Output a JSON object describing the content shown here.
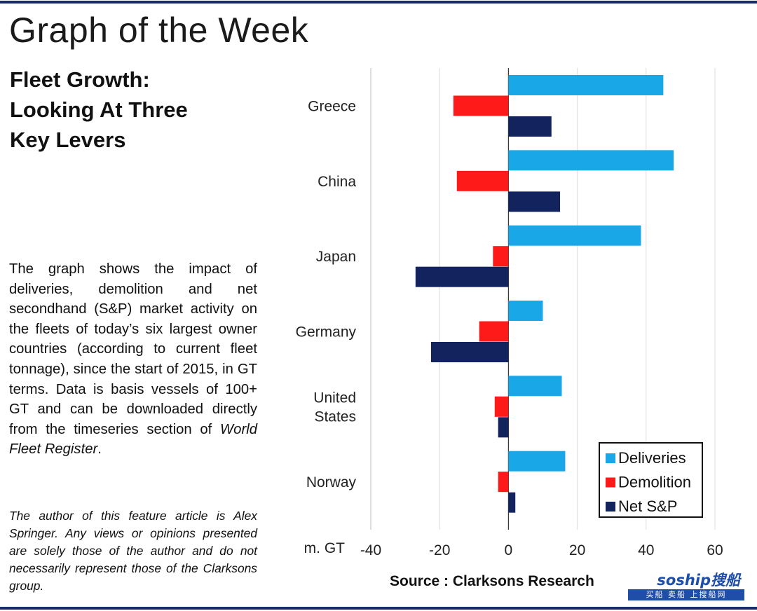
{
  "page": {
    "title": "Graph of the Week",
    "headline": [
      "Fleet Growth:",
      "Looking At Three",
      "Key Levers"
    ],
    "body_text_before_italic": "The graph shows the impact of deliveries, demolition and net secondhand (S&P) market activity on the fleets of today’s six largest owner countries (according to current fleet tonnage), since the start of 2015, in GT terms. Data is basis vessels of 100+ GT and can be downloaded directly from the timeseries section of ",
    "body_text_italic": "World Fleet Register",
    "body_text_after_italic": ".",
    "author_note": "The author of this feature article is Alex Springer. Any views or opinions presented are solely those of the author and do not necessarily represent those of the Clarksons group."
  },
  "chart_data": {
    "type": "bar",
    "orientation": "horizontal",
    "categories": [
      "Greece",
      "China",
      "Japan",
      "Germany",
      "United States",
      "Norway"
    ],
    "category_lines": [
      [
        "Greece"
      ],
      [
        "China"
      ],
      [
        "Japan"
      ],
      [
        "Germany"
      ],
      [
        "United",
        "States"
      ],
      [
        "Norway"
      ]
    ],
    "series": [
      {
        "name": "Deliveries",
        "color": "#1aa7e8",
        "values": [
          45,
          48,
          38.5,
          10,
          15.5,
          16.5
        ]
      },
      {
        "name": "Demolition",
        "color": "#ff1a1a",
        "values": [
          -16,
          -15,
          -4.5,
          -8.5,
          -4,
          -3
        ]
      },
      {
        "name": "Net S&P",
        "color": "#13235e",
        "values": [
          12.5,
          15,
          -27,
          -22.5,
          -3,
          2
        ]
      }
    ],
    "xlim": [
      -40,
      60
    ],
    "xticks": [
      -40,
      -20,
      0,
      20,
      40,
      60
    ],
    "unit_label": "m. GT",
    "grid": true,
    "legend_position": "bottom-right",
    "source": "Source : Clarksons Research"
  },
  "watermark": {
    "logo": "soship搜船",
    "strip": "买船 卖船 上搜船网"
  }
}
